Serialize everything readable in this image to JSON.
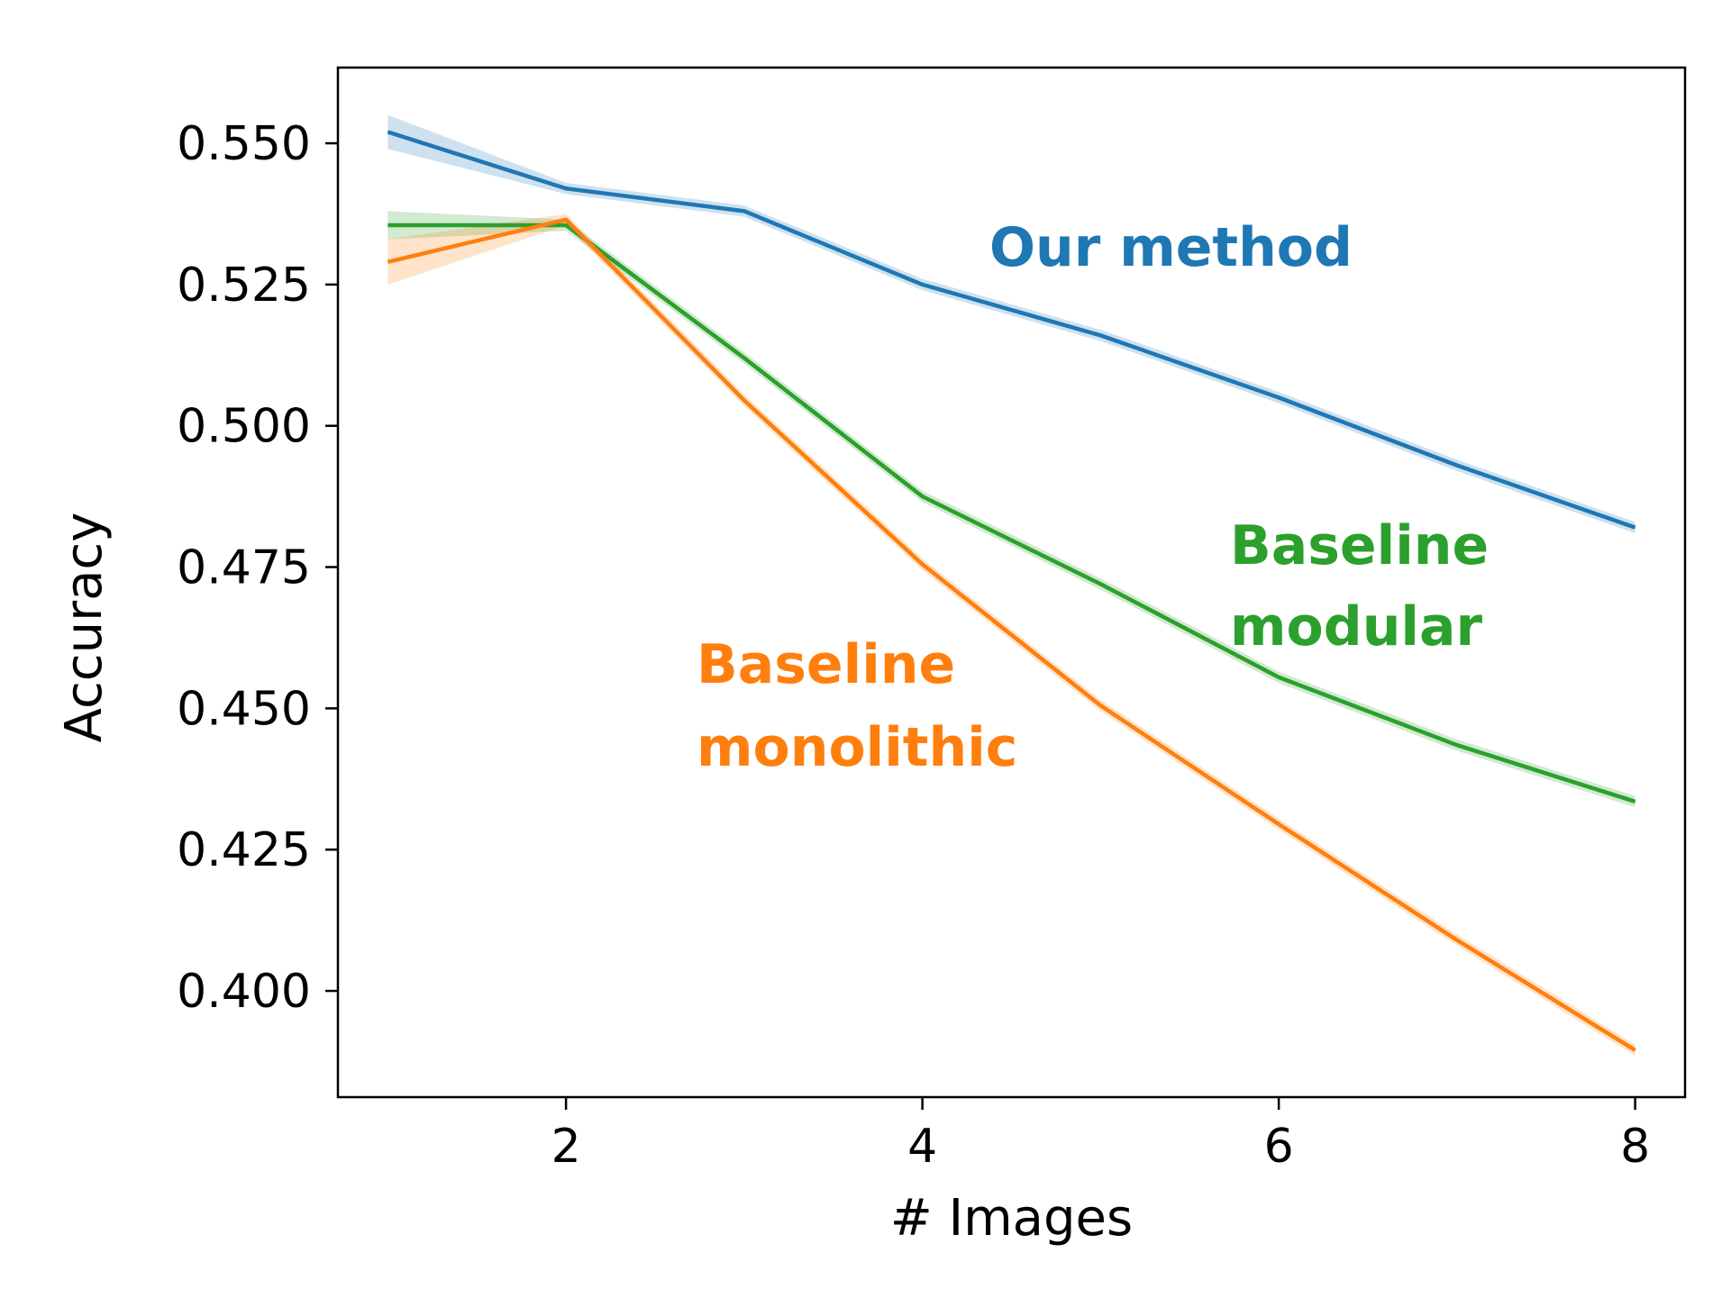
{
  "chart_data": {
    "type": "line",
    "title": "",
    "xlabel": "# Images",
    "ylabel": "Accuracy",
    "xlim": [
      0.72,
      8.28
    ],
    "ylim": [
      0.3812,
      0.5634
    ],
    "xticks": [
      2,
      4,
      6,
      8
    ],
    "yticks": [
      0.4,
      0.425,
      0.45,
      0.475,
      0.5,
      0.525,
      0.55
    ],
    "xtick_labels": [
      "2",
      "4",
      "6",
      "8"
    ],
    "ytick_labels": [
      "0.400",
      "0.425",
      "0.450",
      "0.475",
      "0.500",
      "0.525",
      "0.550"
    ],
    "grid": false,
    "legend": "none",
    "x": [
      1,
      2,
      3,
      4,
      5,
      6,
      7,
      8
    ],
    "series": [
      {
        "name": "Our method",
        "color": "#1f77b4",
        "label_lines": [
          "Our method"
        ],
        "values": [
          0.552,
          0.542,
          0.538,
          0.525,
          0.516,
          0.505,
          0.493,
          0.482
        ],
        "band": [
          0.003,
          0.001,
          0.001,
          0.001,
          0.001,
          0.001,
          0.001,
          0.001
        ]
      },
      {
        "name": "Baseline modular",
        "color": "#2ca02c",
        "label_lines": [
          "Baseline",
          "modular"
        ],
        "values": [
          0.5355,
          0.5355,
          0.512,
          0.4875,
          0.472,
          0.4555,
          0.4435,
          0.4335
        ],
        "band": [
          0.0025,
          0.001,
          0.001,
          0.001,
          0.001,
          0.001,
          0.001,
          0.001
        ]
      },
      {
        "name": "Baseline monolithic",
        "color": "#ff7f0e",
        "label_lines": [
          "Baseline",
          "monolithic"
        ],
        "values": [
          0.529,
          0.5365,
          0.5045,
          0.4755,
          0.4505,
          0.4295,
          0.409,
          0.3895
        ],
        "band": [
          0.004,
          0.001,
          0.001,
          0.001,
          0.001,
          0.001,
          0.001,
          0.001
        ]
      }
    ]
  }
}
